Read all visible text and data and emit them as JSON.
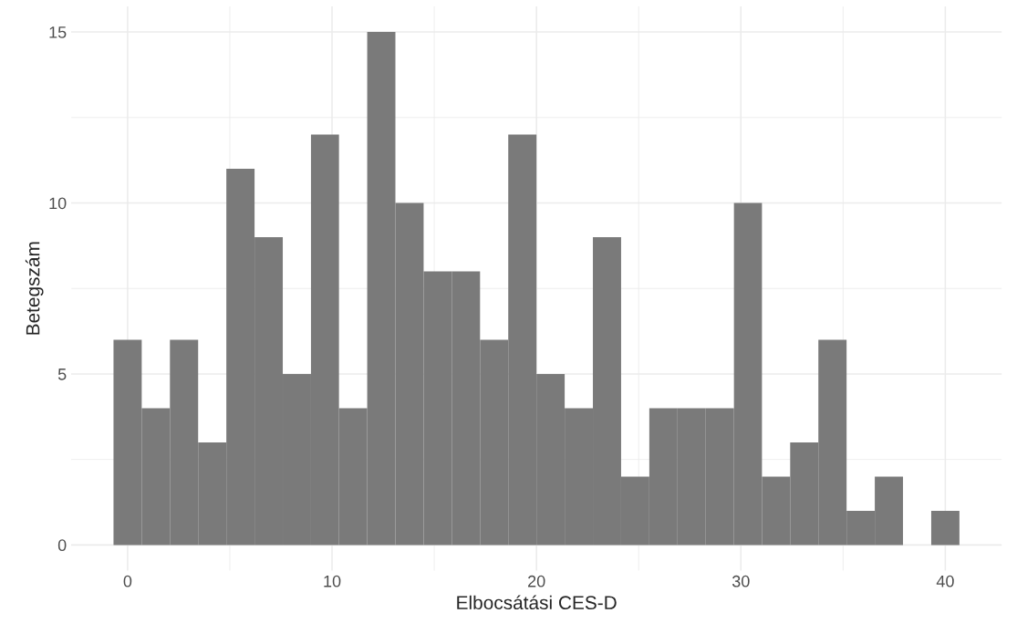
{
  "chart_data": {
    "type": "histogram",
    "xlabel": "Elbocsátási CES-D",
    "ylabel": "Betegszám",
    "bins": [
      -0.69,
      0.69,
      2.07,
      3.45,
      4.83,
      6.21,
      7.59,
      8.97,
      10.34,
      11.72,
      13.1,
      14.48,
      15.86,
      17.24,
      18.62,
      20.0,
      21.38,
      22.76,
      24.14,
      25.52,
      26.9,
      28.28,
      29.66,
      31.03,
      32.41,
      33.79,
      35.17,
      36.55,
      37.93,
      39.31,
      40.69
    ],
    "values": [
      6,
      4,
      6,
      3,
      11,
      9,
      5,
      12,
      4,
      15,
      10,
      8,
      8,
      6,
      12,
      5,
      4,
      9,
      2,
      4,
      4,
      4,
      10,
      2,
      3,
      6,
      1,
      2,
      0,
      1
    ],
    "color": "#7a7a7a",
    "xlim": [
      -2.76,
      42.76
    ],
    "ylim": [
      -0.75,
      15.75
    ],
    "xticks": [
      0,
      10,
      20,
      30,
      40
    ],
    "yticks": [
      0,
      5,
      10,
      15
    ],
    "grid": true
  }
}
